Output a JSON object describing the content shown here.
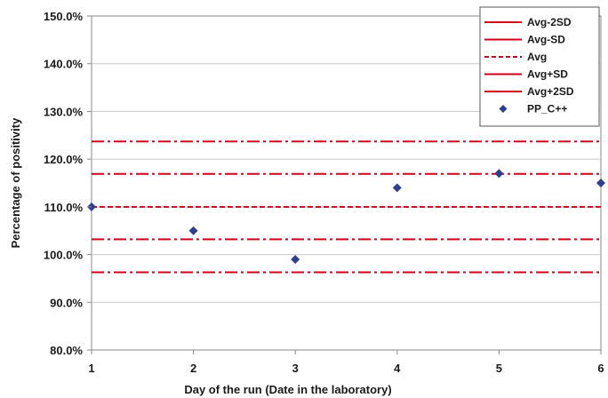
{
  "chart_data": {
    "type": "scatter",
    "title": "",
    "xlabel": "Day of the run (Date in the laboratory)",
    "ylabel": "Percentage of positivity",
    "xlim": [
      1,
      6
    ],
    "ylim": [
      80,
      150
    ],
    "x_ticks": [
      "1",
      "2",
      "3",
      "4",
      "5",
      "6"
    ],
    "y_ticks": [
      "80.0%",
      "90.0%",
      "100.0%",
      "110.0%",
      "120.0%",
      "130.0%",
      "140.0%",
      "150.0%"
    ],
    "grid": "horizontal",
    "legend_position": "top-right",
    "reference_lines": [
      {
        "name": "Avg-2SD",
        "value": 96.3,
        "style": "dash-dot",
        "color": "#d0021b"
      },
      {
        "name": "Avg-SD",
        "value": 103.2,
        "style": "dash-dot",
        "color": "#d0021b"
      },
      {
        "name": "Avg",
        "value": 110.0,
        "style": "dashed",
        "color": "#d0021b"
      },
      {
        "name": "Avg+SD",
        "value": 116.9,
        "style": "dash-dot",
        "color": "#d0021b"
      },
      {
        "name": "Avg+2SD",
        "value": 123.7,
        "style": "dash-dot",
        "color": "#d0021b"
      }
    ],
    "series": [
      {
        "name": "PP_C++",
        "marker": "diamond",
        "color": "#2e3f8f",
        "x": [
          1,
          2,
          3,
          4,
          5,
          6
        ],
        "values": [
          110,
          105,
          99,
          114,
          117,
          115
        ]
      }
    ]
  }
}
